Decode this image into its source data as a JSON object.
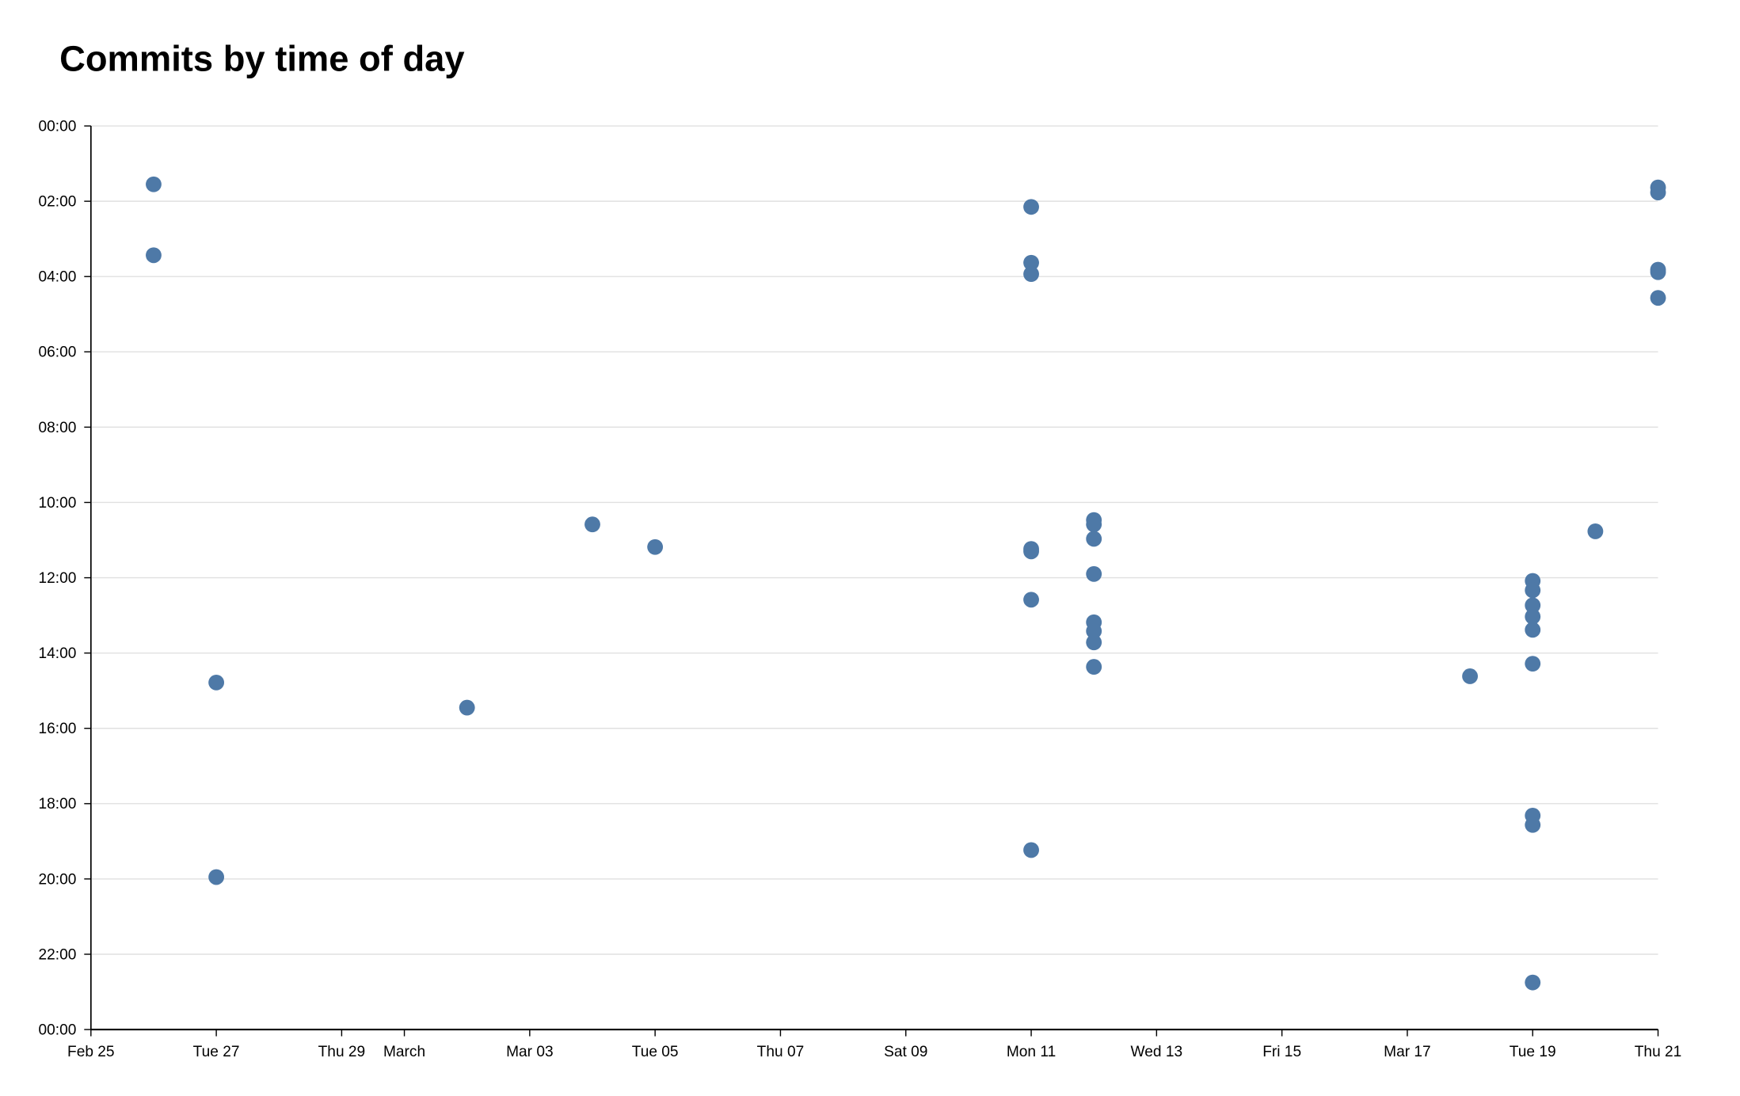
{
  "chart_data": {
    "type": "scatter",
    "title": "Commits by time of day",
    "xlabel": "",
    "ylabel": "",
    "x_range": [
      "Feb 25",
      "Mar 21"
    ],
    "y_range": [
      "00:00",
      "24:00"
    ],
    "y_inverted": true,
    "grid": "horizontal",
    "point_color": "#4e79a7",
    "x_ticks": [
      {
        "label": "Feb 25",
        "date": "Feb 25"
      },
      {
        "label": "Tue 27",
        "date": "Feb 27"
      },
      {
        "label": "Thu 29",
        "date": "Feb 29"
      },
      {
        "label": "March",
        "date": "Mar 1"
      },
      {
        "label": "Mar 03",
        "date": "Mar 3"
      },
      {
        "label": "Tue 05",
        "date": "Mar 5"
      },
      {
        "label": "Thu 07",
        "date": "Mar 7"
      },
      {
        "label": "Sat 09",
        "date": "Mar 9"
      },
      {
        "label": "Mon 11",
        "date": "Mar 11"
      },
      {
        "label": "Wed 13",
        "date": "Mar 13"
      },
      {
        "label": "Fri 15",
        "date": "Mar 15"
      },
      {
        "label": "Mar 17",
        "date": "Mar 17"
      },
      {
        "label": "Tue 19",
        "date": "Mar 19"
      },
      {
        "label": "Thu 21",
        "date": "Mar 21"
      }
    ],
    "y_ticks": [
      "00:00",
      "02:00",
      "04:00",
      "06:00",
      "08:00",
      "10:00",
      "12:00",
      "14:00",
      "16:00",
      "18:00",
      "20:00",
      "22:00",
      "00:00"
    ],
    "points": [
      {
        "date": "Feb 26",
        "time": "01:33"
      },
      {
        "date": "Feb 26",
        "time": "03:26"
      },
      {
        "date": "Feb 27",
        "time": "14:47"
      },
      {
        "date": "Feb 27",
        "time": "19:57"
      },
      {
        "date": "Mar 2",
        "time": "15:27"
      },
      {
        "date": "Mar 4",
        "time": "10:35"
      },
      {
        "date": "Mar 5",
        "time": "11:11"
      },
      {
        "date": "Mar 11",
        "time": "02:09"
      },
      {
        "date": "Mar 11",
        "time": "03:38"
      },
      {
        "date": "Mar 11",
        "time": "03:56"
      },
      {
        "date": "Mar 11",
        "time": "11:14"
      },
      {
        "date": "Mar 11",
        "time": "11:18"
      },
      {
        "date": "Mar 11",
        "time": "12:35"
      },
      {
        "date": "Mar 11",
        "time": "19:14"
      },
      {
        "date": "Mar 12",
        "time": "10:28"
      },
      {
        "date": "Mar 12",
        "time": "10:35"
      },
      {
        "date": "Mar 12",
        "time": "10:58"
      },
      {
        "date": "Mar 12",
        "time": "11:54"
      },
      {
        "date": "Mar 12",
        "time": "13:11"
      },
      {
        "date": "Mar 12",
        "time": "13:25"
      },
      {
        "date": "Mar 12",
        "time": "13:43"
      },
      {
        "date": "Mar 12",
        "time": "14:22"
      },
      {
        "date": "Mar 18",
        "time": "14:37"
      },
      {
        "date": "Mar 19",
        "time": "12:05"
      },
      {
        "date": "Mar 19",
        "time": "12:20"
      },
      {
        "date": "Mar 19",
        "time": "12:44"
      },
      {
        "date": "Mar 19",
        "time": "13:02"
      },
      {
        "date": "Mar 19",
        "time": "13:23"
      },
      {
        "date": "Mar 19",
        "time": "14:17"
      },
      {
        "date": "Mar 19",
        "time": "18:19"
      },
      {
        "date": "Mar 19",
        "time": "18:34"
      },
      {
        "date": "Mar 19",
        "time": "22:45"
      },
      {
        "date": "Mar 20",
        "time": "10:46"
      },
      {
        "date": "Mar 21",
        "time": "01:38"
      },
      {
        "date": "Mar 21",
        "time": "01:46"
      },
      {
        "date": "Mar 21",
        "time": "03:49"
      },
      {
        "date": "Mar 21",
        "time": "03:53"
      },
      {
        "date": "Mar 21",
        "time": "04:34"
      }
    ]
  }
}
